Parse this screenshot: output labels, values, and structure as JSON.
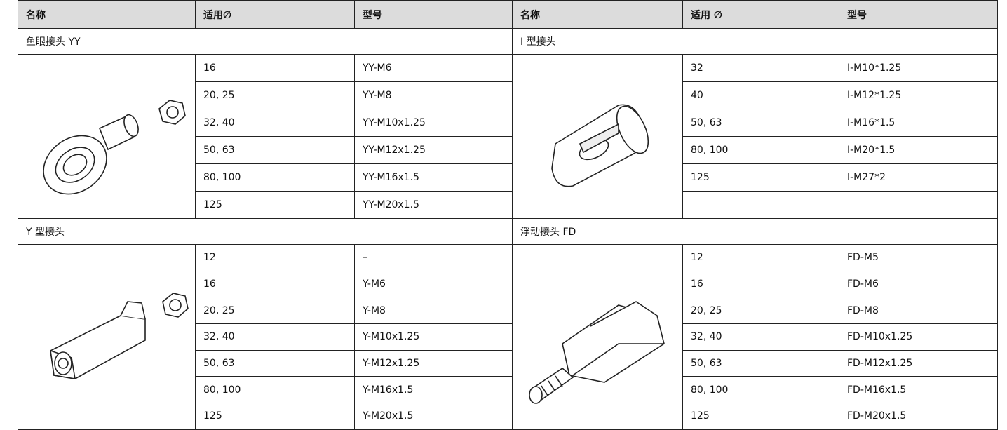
{
  "header": [
    "名称",
    "适用∅",
    "型号",
    "名称",
    "适用 ∅",
    "型号"
  ],
  "groups": [
    {
      "left": {
        "title": "鱼眼接头 YY",
        "rows": [
          [
            "16",
            "YY-M6"
          ],
          [
            "20, 25",
            "YY-M8"
          ],
          [
            "32, 40",
            "YY-M10x1.25"
          ],
          [
            "50, 63",
            "YY-M12x1.25"
          ],
          [
            "80, 100",
            "YY-M16x1.5"
          ],
          [
            "125",
            "YY-M20x1.5"
          ]
        ]
      },
      "right": {
        "title": "I 型接头",
        "rows": [
          [
            "32",
            "I-M10*1.25"
          ],
          [
            "40",
            "I-M12*1.25"
          ],
          [
            "50, 63",
            "I-M16*1.5"
          ],
          [
            "80, 100",
            "I-M20*1.5"
          ],
          [
            "125",
            "I-M27*2"
          ]
        ]
      }
    },
    {
      "left": {
        "title": "Y 型接头",
        "rows": [
          [
            "12",
            "–"
          ],
          [
            "16",
            "Y-M6"
          ],
          [
            "20, 25",
            "Y-M8"
          ],
          [
            "32, 40",
            "Y-M10x1.25"
          ],
          [
            "50, 63",
            "Y-M12x1.25"
          ],
          [
            "80, 100",
            "Y-M16x1.5"
          ],
          [
            "125",
            "Y-M20x1.5"
          ]
        ]
      },
      "right": {
        "title": "浮动接头 FD",
        "rows": [
          [
            "12",
            "FD-M5"
          ],
          [
            "16",
            "FD-M6"
          ],
          [
            "20, 25",
            "FD-M8"
          ],
          [
            "32, 40",
            "FD-M10x1.25"
          ],
          [
            "50, 63",
            "FD-M12x1.25"
          ],
          [
            "80, 100",
            "FD-M16x1.5"
          ],
          [
            "125",
            "FD-M20x1.5"
          ]
        ]
      }
    }
  ]
}
